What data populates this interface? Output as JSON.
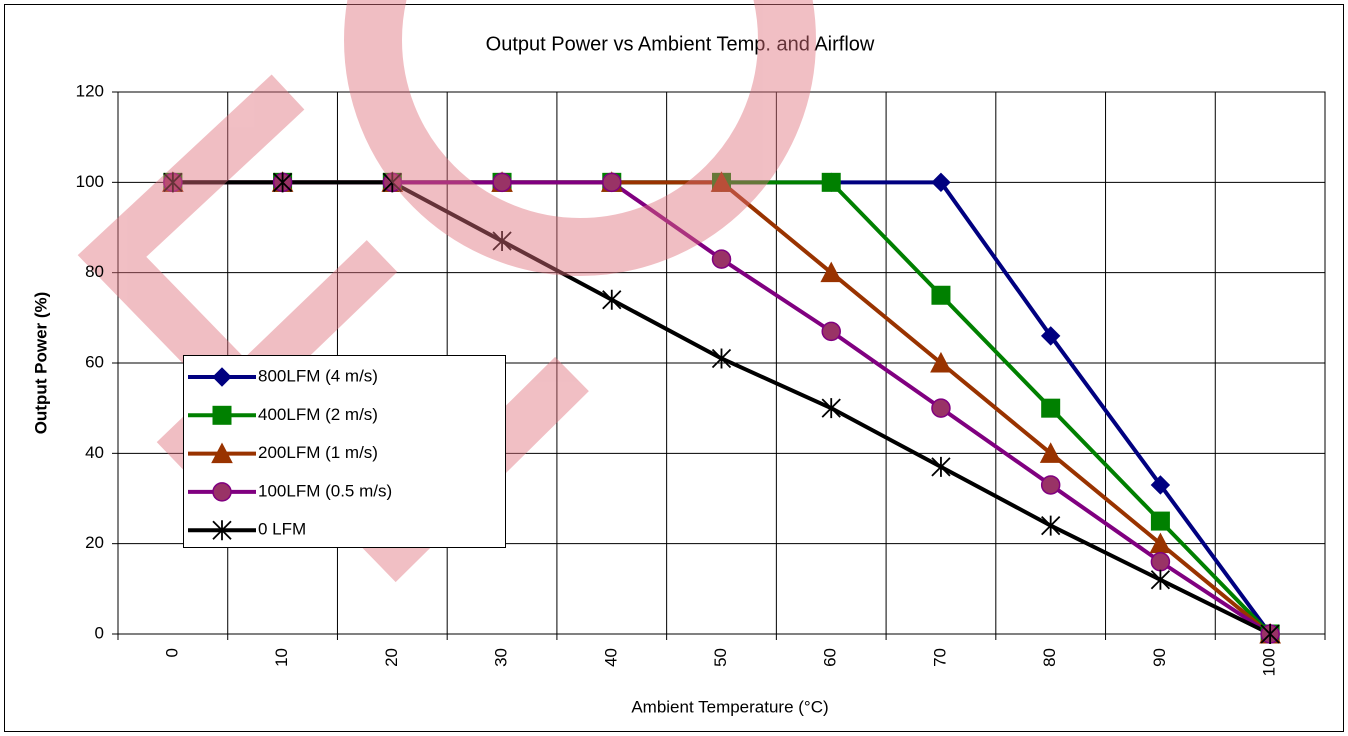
{
  "chart_data": {
    "type": "line",
    "title": "Output Power vs Ambient Temp. and Airflow",
    "x_label": "Ambient Temperature (°C)",
    "y_label": "Output Power (%)",
    "categories": [
      "0",
      "10",
      "20",
      "30",
      "40",
      "50",
      "60",
      "70",
      "80",
      "90",
      "100"
    ],
    "ylim": [
      0,
      120
    ],
    "yticks": [
      0,
      20,
      40,
      60,
      80,
      100,
      120
    ],
    "grid": true,
    "series": [
      {
        "name": "800LFM (4 m/s)",
        "color": "#000080",
        "marker": "diamond",
        "values": [
          100,
          100,
          100,
          100,
          100,
          100,
          100,
          100,
          66,
          33,
          0
        ]
      },
      {
        "name": "400LFM (2 m/s)",
        "color": "#008000",
        "marker": "square",
        "values": [
          100,
          100,
          100,
          100,
          100,
          100,
          100,
          75,
          50,
          25,
          0
        ]
      },
      {
        "name": "200LFM (1 m/s)",
        "color": "#993300",
        "marker": "triangle",
        "values": [
          100,
          100,
          100,
          100,
          100,
          100,
          80,
          60,
          40,
          20,
          0
        ]
      },
      {
        "name": "100LFM (0.5 m/s)",
        "color": "#800080",
        "marker": "circle",
        "values": [
          100,
          100,
          100,
          100,
          100,
          83,
          67,
          50,
          33,
          16,
          0
        ]
      },
      {
        "name": "0 LFM",
        "color": "#000000",
        "marker": "star",
        "values": [
          100,
          100,
          100,
          87,
          74,
          61,
          50,
          37,
          24,
          12,
          0
        ]
      }
    ]
  }
}
